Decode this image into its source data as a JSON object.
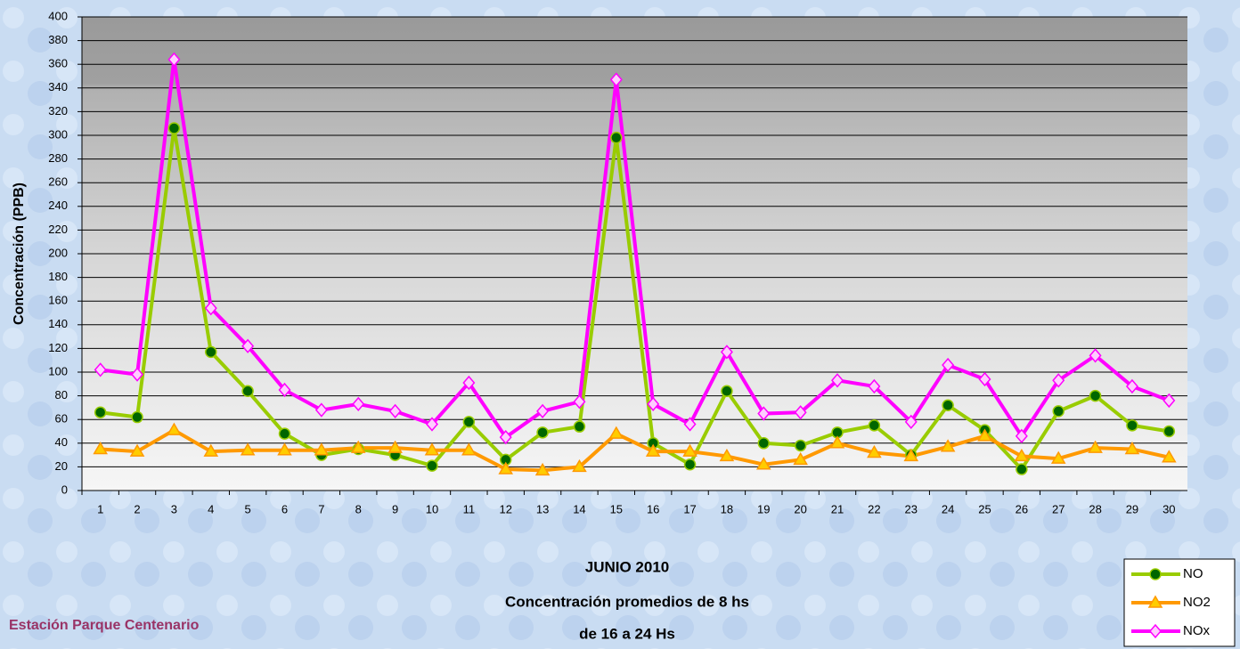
{
  "chart_data": {
    "type": "line",
    "title": "JUNIO 2010",
    "subtitle": [
      "Concentración promedios de 8 hs",
      "de 16 a 24 Hs"
    ],
    "annotation": "Estación Parque Centenario",
    "y_label": "Concentración  (PPB)",
    "categories": [
      1,
      2,
      3,
      4,
      5,
      6,
      7,
      8,
      9,
      10,
      11,
      12,
      13,
      14,
      15,
      16,
      17,
      18,
      19,
      20,
      21,
      22,
      23,
      24,
      25,
      26,
      27,
      28,
      29,
      30
    ],
    "series": [
      {
        "name": "NO",
        "color": "#99cc00",
        "marker": "circle",
        "marker_color": "#006600",
        "values": [
          66,
          62,
          306,
          117,
          84,
          48,
          30,
          35,
          30,
          21,
          58,
          26,
          49,
          54,
          298,
          40,
          22,
          84,
          40,
          38,
          49,
          55,
          30,
          72,
          51,
          18,
          67,
          80,
          55,
          50
        ]
      },
      {
        "name": "NO2",
        "color": "#ff9900",
        "marker": "triangle",
        "marker_color": "#ffcc00",
        "values": [
          35,
          33,
          51,
          33,
          34,
          34,
          34,
          36,
          36,
          34,
          34,
          18,
          17,
          20,
          48,
          33,
          33,
          29,
          22,
          26,
          40,
          32,
          29,
          37,
          46,
          29,
          27,
          36,
          35,
          28
        ]
      },
      {
        "name": "NOx",
        "color": "#ff00ff",
        "marker": "diamond",
        "marker_color": "#ffccff",
        "values": [
          102,
          98,
          364,
          154,
          122,
          85,
          68,
          73,
          67,
          56,
          91,
          45,
          67,
          75,
          347,
          73,
          56,
          117,
          65,
          66,
          93,
          88,
          58,
          106,
          94,
          46,
          93,
          114,
          88,
          76
        ]
      }
    ],
    "ylim": [
      0,
      400
    ],
    "yticks": [
      0,
      20,
      40,
      60,
      80,
      100,
      120,
      140,
      160,
      180,
      200,
      220,
      240,
      260,
      280,
      300,
      320,
      340,
      360,
      380,
      400
    ],
    "grid": true
  }
}
